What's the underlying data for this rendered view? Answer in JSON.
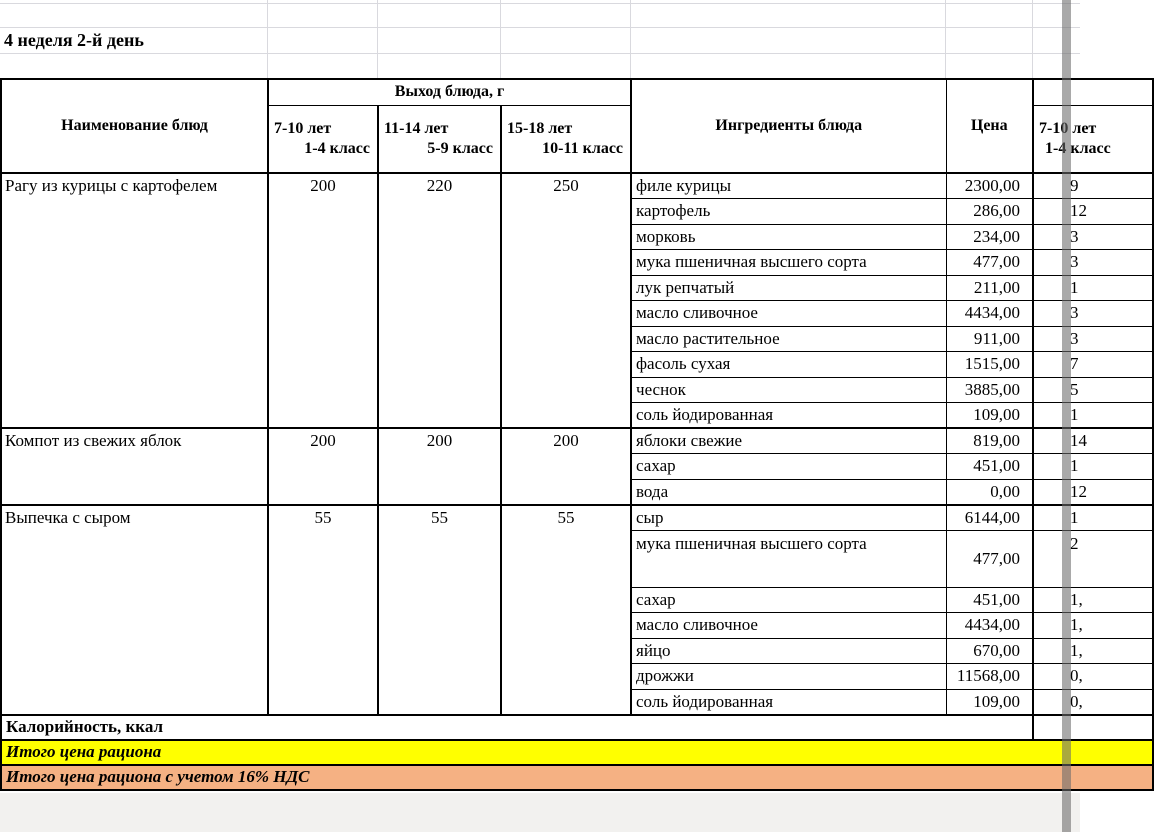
{
  "sheet": {
    "title": "4 неделя 2-й день",
    "header": {
      "dish_col": "Наименование блюд",
      "output_group": "Выход блюда, г",
      "age_cols": [
        {
          "line1": "7-10 лет",
          "line2": "1-4 класс"
        },
        {
          "line1": "11-14 лет",
          "line2": "5-9 класс"
        },
        {
          "line1": "15-18 лет",
          "line2": "10-11 класс"
        }
      ],
      "ingredients_col": "Ингредиенты блюда",
      "price_col": "Цена",
      "cut_col": {
        "line1": "7-10 лет",
        "line2": "1-4 класс"
      }
    },
    "dishes": [
      {
        "name": "Рагу из курицы с картофелем",
        "outputs": [
          "200",
          "220",
          "250"
        ],
        "ingredients": [
          {
            "name": "филе курицы",
            "price": "2300,00",
            "cut": "9"
          },
          {
            "name": "картофель",
            "price": "286,00",
            "cut": "12"
          },
          {
            "name": "морковь",
            "price": "234,00",
            "cut": "3"
          },
          {
            "name": "мука пшеничная высшего сорта",
            "price": "477,00",
            "cut": "3"
          },
          {
            "name": "лук репчатый",
            "price": "211,00",
            "cut": "1"
          },
          {
            "name": "масло сливочное",
            "price": "4434,00",
            "cut": "3"
          },
          {
            "name": "масло растительное",
            "price": "911,00",
            "cut": "3"
          },
          {
            "name": "фасоль сухая",
            "price": "1515,00",
            "cut": "7"
          },
          {
            "name": "чеснок",
            "price": "3885,00",
            "cut": "5"
          },
          {
            "name": "соль йодированная",
            "price": "109,00",
            "cut": "1"
          }
        ]
      },
      {
        "name": "Компот из свежих яблок",
        "outputs": [
          "200",
          "200",
          "200"
        ],
        "ingredients": [
          {
            "name": "яблоки свежие",
            "price": "819,00",
            "cut": "14"
          },
          {
            "name": "сахар",
            "price": "451,00",
            "cut": "1"
          },
          {
            "name": "вода",
            "price": "0,00",
            "cut": "12"
          }
        ]
      },
      {
        "name": "Выпечка с сыром",
        "outputs": [
          "55",
          "55",
          "55"
        ],
        "ingredients": [
          {
            "name": "сыр",
            "price": "6144,00",
            "cut": "1"
          },
          {
            "name": "мука пшеничная высшего сорта",
            "price": "477,00",
            "cut": "2",
            "tall": true
          },
          {
            "name": "сахар",
            "price": "451,00",
            "cut": "1,"
          },
          {
            "name": "масло сливочное",
            "price": "4434,00",
            "cut": "1,"
          },
          {
            "name": "яйцо",
            "price": "670,00",
            "cut": "1,"
          },
          {
            "name": "дрожжи",
            "price": "11568,00",
            "cut": "0,"
          },
          {
            "name": "соль йодированная",
            "price": "109,00",
            "cut": "0,"
          }
        ]
      }
    ],
    "footer": {
      "calories": "Калорийность, ккал",
      "total": "Итого цена рациона",
      "total_vat": "Итого цена рациона с учетом 16% НДС"
    },
    "colors": {
      "total_row_bg": "#ffff00",
      "total_vat_row_bg": "#f5b183",
      "pane_divider": "#6a6a6a",
      "grid_line": "#d9d9de"
    }
  }
}
